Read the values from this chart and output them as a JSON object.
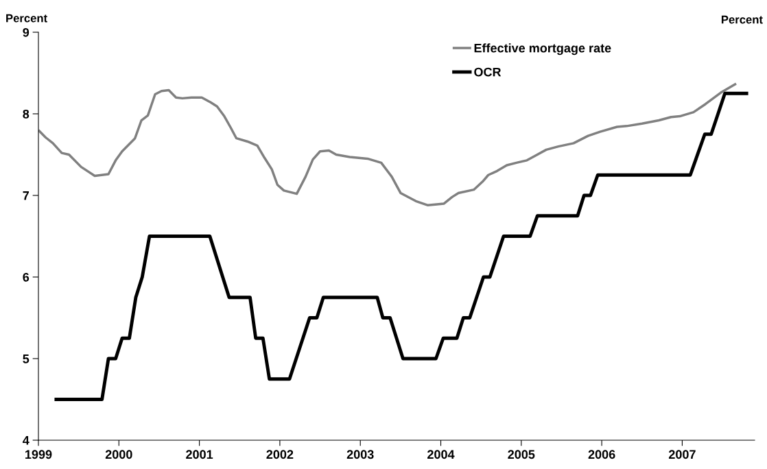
{
  "chart_data": {
    "type": "line",
    "ylabel": "Percent",
    "y2label": "Percent",
    "xlim": [
      1999,
      2007.9
    ],
    "xticks": [
      1999,
      2000,
      2001,
      2002,
      2003,
      2004,
      2005,
      2006,
      2007
    ],
    "ylim": [
      4,
      9
    ],
    "yticks": [
      4,
      5,
      6,
      7,
      8,
      9
    ],
    "grid": false,
    "legend": "top",
    "marker": "none",
    "line_style": "solid",
    "series": [
      {
        "name": "Effective mortgage rate",
        "color": "#808080",
        "x": [
          1999.0,
          1999.09,
          1999.18,
          1999.29,
          1999.38,
          1999.53,
          1999.7,
          1999.87,
          1999.96,
          2000.04,
          2000.2,
          2000.28,
          2000.36,
          2000.45,
          2000.53,
          2000.62,
          2000.71,
          2000.79,
          2000.9,
          2001.03,
          2001.14,
          2001.22,
          2001.31,
          2001.39,
          2001.46,
          2001.6,
          2001.72,
          2001.81,
          2001.9,
          2001.97,
          2002.05,
          2002.21,
          2002.32,
          2002.41,
          2002.5,
          2002.61,
          2002.7,
          2002.87,
          2003.09,
          2003.26,
          2003.39,
          2003.5,
          2003.69,
          2003.84,
          2004.04,
          2004.14,
          2004.22,
          2004.41,
          2004.52,
          2004.59,
          2004.7,
          2004.82,
          2004.94,
          2005.07,
          2005.18,
          2005.31,
          2005.46,
          2005.65,
          2005.83,
          2005.98,
          2006.19,
          2006.31,
          2006.5,
          2006.71,
          2006.86,
          2006.97,
          2007.14,
          2007.29,
          2007.48,
          2007.67
        ],
        "values": [
          7.8,
          7.71,
          7.64,
          7.52,
          7.5,
          7.35,
          7.24,
          7.26,
          7.43,
          7.54,
          7.7,
          7.92,
          7.98,
          8.24,
          8.28,
          8.29,
          8.2,
          8.19,
          8.2,
          8.2,
          8.14,
          8.09,
          7.97,
          7.83,
          7.7,
          7.66,
          7.61,
          7.46,
          7.32,
          7.13,
          7.06,
          7.02,
          7.23,
          7.44,
          7.54,
          7.55,
          7.5,
          7.47,
          7.45,
          7.4,
          7.23,
          7.03,
          6.93,
          6.88,
          6.9,
          6.98,
          7.03,
          7.07,
          7.17,
          7.25,
          7.3,
          7.37,
          7.4,
          7.43,
          7.49,
          7.56,
          7.6,
          7.64,
          7.73,
          7.78,
          7.84,
          7.85,
          7.88,
          7.92,
          7.96,
          7.97,
          8.02,
          8.12,
          8.26,
          8.37
        ]
      },
      {
        "name": "OCR",
        "color": "#000000",
        "x": [
          1999.2,
          1999.79,
          1999.87,
          1999.96,
          2000.04,
          2000.13,
          2000.21,
          2000.29,
          2000.38,
          2001.13,
          2001.37,
          2001.63,
          2001.7,
          2001.79,
          2001.87,
          2002.12,
          2002.37,
          2002.46,
          2002.54,
          2003.21,
          2003.28,
          2003.37,
          2003.53,
          2003.94,
          2004.03,
          2004.2,
          2004.28,
          2004.36,
          2004.53,
          2004.61,
          2004.78,
          2005.11,
          2005.2,
          2005.7,
          2005.78,
          2005.86,
          2005.95,
          2007.1,
          2007.28,
          2007.36,
          2007.53,
          2007.82
        ],
        "values": [
          4.5,
          4.5,
          5.0,
          5.0,
          5.25,
          5.25,
          5.75,
          6.0,
          6.5,
          6.5,
          5.75,
          5.75,
          5.25,
          5.25,
          4.75,
          4.75,
          5.5,
          5.5,
          5.75,
          5.75,
          5.5,
          5.5,
          5.0,
          5.0,
          5.25,
          5.25,
          5.5,
          5.5,
          6.0,
          6.0,
          6.5,
          6.5,
          6.75,
          6.75,
          7.0,
          7.0,
          7.25,
          7.25,
          7.75,
          7.75,
          8.25,
          8.25
        ]
      }
    ]
  }
}
